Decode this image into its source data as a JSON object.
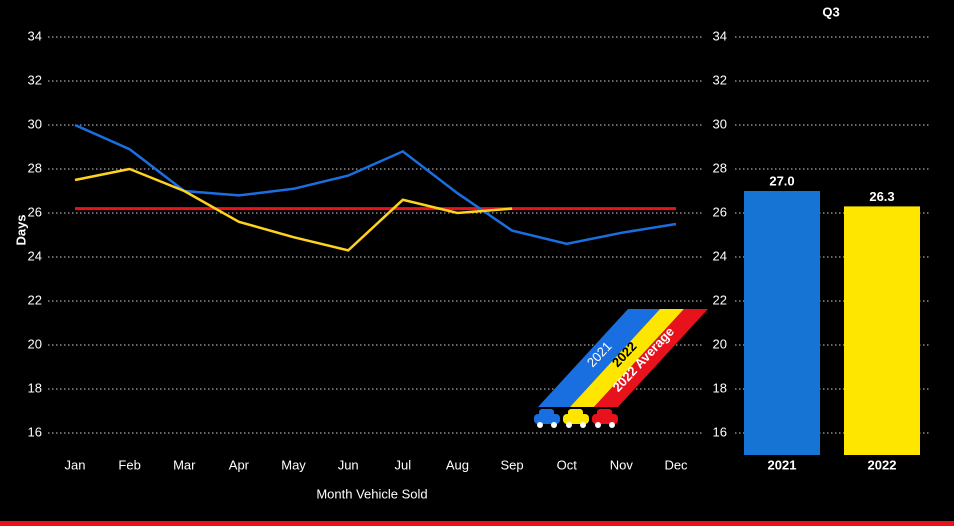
{
  "chart_data": [
    {
      "type": "line",
      "y_label": "Days",
      "x_label": "Month Vehicle Sold",
      "categories": [
        "Jan",
        "Feb",
        "Mar",
        "Apr",
        "May",
        "Jun",
        "Jul",
        "Aug",
        "Sep",
        "Oct",
        "Nov",
        "Dec"
      ],
      "series": [
        {
          "name": "2021",
          "color": "#1a6fe0",
          "values": [
            30.0,
            28.9,
            27.0,
            26.8,
            27.1,
            27.7,
            28.8,
            26.9,
            25.2,
            24.6,
            25.1,
            25.5
          ]
        },
        {
          "name": "2022",
          "color": "#ffd21f",
          "values": [
            27.5,
            28.0,
            27.0,
            25.6,
            24.9,
            24.3,
            26.6,
            26.0,
            26.2,
            null,
            null,
            null
          ]
        },
        {
          "name": "2022 Average",
          "color": "#e8121c",
          "values": [
            26.2,
            26.2,
            26.2,
            26.2,
            26.2,
            26.2,
            26.2,
            26.2,
            26.2,
            26.2,
            26.2,
            26.2
          ]
        }
      ],
      "ylim": [
        15,
        35
      ],
      "yticks": [
        16,
        18,
        20,
        22,
        24,
        26,
        28,
        30,
        32,
        34
      ],
      "grid": true
    },
    {
      "type": "bar",
      "title": "Q3",
      "categories": [
        "2021",
        "2022"
      ],
      "values": [
        27.0,
        26.3
      ],
      "value_labels": [
        "27.0",
        "26.3"
      ],
      "colors": [
        "#1674d4",
        "#ffe600"
      ],
      "ylim": [
        15,
        35
      ],
      "yticks": [
        16,
        18,
        20,
        22,
        24,
        26,
        28,
        30,
        32,
        34
      ],
      "grid": true
    }
  ]
}
